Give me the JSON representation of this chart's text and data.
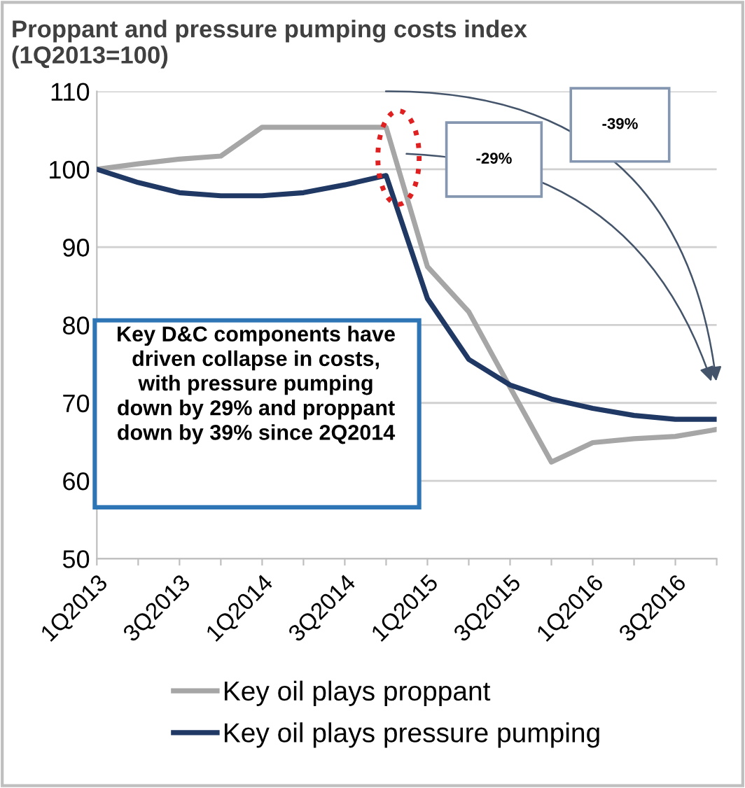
{
  "chart_data": {
    "type": "line",
    "title": "Proppant and pressure pumping costs index",
    "subtitle": "(1Q2013=100)",
    "categories": [
      "1Q2013",
      null,
      "3Q2013",
      null,
      "1Q2014",
      null,
      "3Q2014",
      null,
      "1Q2015",
      null,
      "3Q2015",
      null,
      "1Q2016",
      null,
      "3Q2016",
      null
    ],
    "series": [
      {
        "name": "Key oil plays proppant",
        "color": "#a6a6a6",
        "values": [
          100,
          100.7,
          101.3,
          101.7,
          105.4,
          105.4,
          105.4,
          105.4,
          87.5,
          81.7,
          72,
          62.4,
          64.9,
          65.4,
          65.7,
          66.6
        ]
      },
      {
        "name": "Key oil plays pressure pumping",
        "color": "#1f3864",
        "values": [
          100,
          98.3,
          97.0,
          96.6,
          96.6,
          97.0,
          98.0,
          99.2,
          83.4,
          75.6,
          72.3,
          70.5,
          69.3,
          68.4,
          67.9,
          67.9
        ]
      }
    ],
    "ylim": [
      50,
      110
    ],
    "yticks": [
      50,
      60,
      70,
      80,
      90,
      100,
      110
    ],
    "grid": "y",
    "legend": "bottom",
    "marker": "none",
    "line_style": "solid",
    "annotations": [
      "Key D&C components have\ndriven collapse in costs,\nwith pressure pumping\ndown by 29% and proppant\ndown by 39% since 2Q2014",
      "-29%",
      "-39%"
    ]
  }
}
